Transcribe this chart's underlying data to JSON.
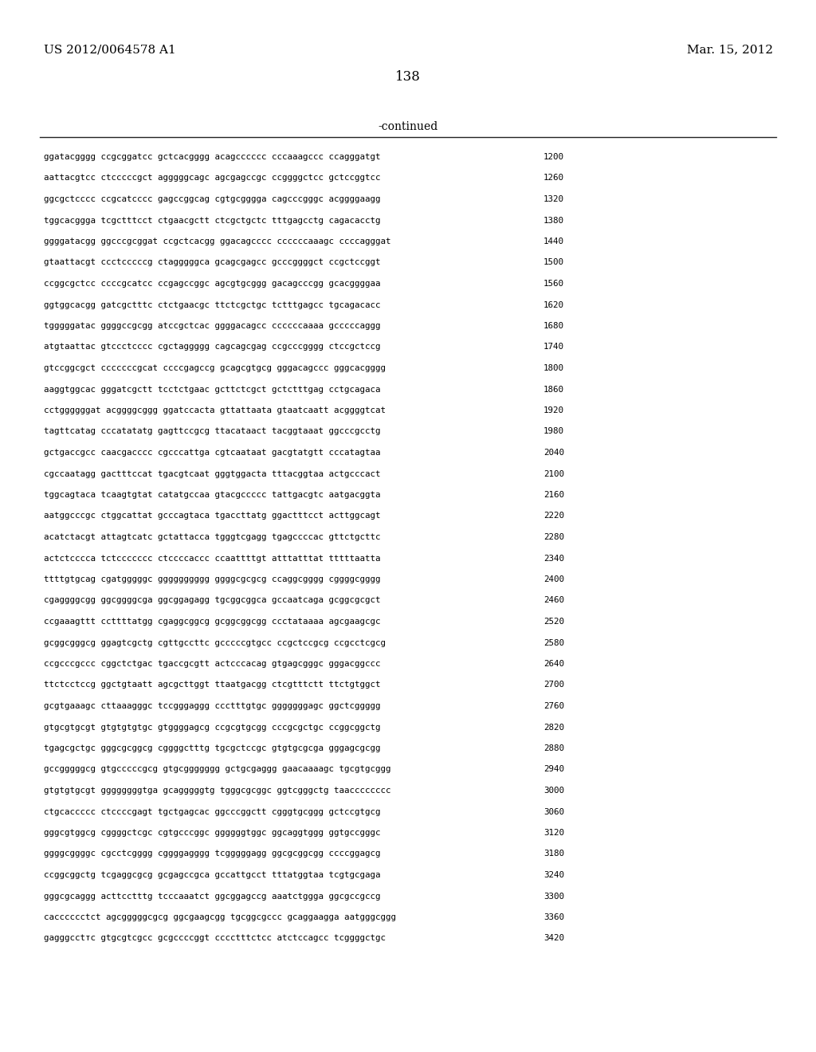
{
  "header_left": "US 2012/0064578 A1",
  "header_right": "Mar. 15, 2012",
  "page_number": "138",
  "continued_label": "-continued",
  "background_color": "#ffffff",
  "text_color": "#000000",
  "sequence_lines": [
    {
      "seq": "ggatacgggg ccgcggatcc gctcacgggg acagcccccc cccaaagccc ccagggatgt",
      "num": "1200"
    },
    {
      "seq": "aattacgtcc ctcccccgct agggggcagc agcgagccgc ccggggctcc gctccggtcc",
      "num": "1260"
    },
    {
      "seq": "ggcgctcccc ccgcatcccc gagccggcag cgtgcgggga cagcccgggc acggggaagg",
      "num": "1320"
    },
    {
      "seq": "tggcacggga tcgctttcct ctgaacgctt ctcgctgctc tttgagcctg cagacacctg",
      "num": "1380"
    },
    {
      "seq": "ggggatacgg ggcccgcggat ccgctcacgg ggacagcccc ccccccaaagc ccccagggat",
      "num": "1440"
    },
    {
      "seq": "gtaattacgt ccctcccccg ctagggggca gcagcgagcc gcccggggct ccgctccggt",
      "num": "1500"
    },
    {
      "seq": "ccggcgctcc ccccgcatcc ccgagccggc agcgtgcggg gacagcccgg gcacggggaa",
      "num": "1560"
    },
    {
      "seq": "ggtggcacgg gatcgctttc ctctgaacgc ttctcgctgc tctttgagcc tgcagacacc",
      "num": "1620"
    },
    {
      "seq": "tgggggatac ggggccgcgg atccgctcac ggggacagcc ccccccaaaa gcccccaggg",
      "num": "1680"
    },
    {
      "seq": "atgtaattac gtccctcccc cgctaggggg cagcagcgag ccgcccgggg ctccgctccg",
      "num": "1740"
    },
    {
      "seq": "gtccggcgct cccccccgcat ccccgagccg gcagcgtgcg gggacagccc gggcacgggg",
      "num": "1800"
    },
    {
      "seq": "aaggtggcac gggatcgctt tcctctgaac gcttctcgct gctctttgag cctgcagaca",
      "num": "1860"
    },
    {
      "seq": "cctggggggat acggggcggg ggatccacta gttattaata gtaatcaatt acggggtcat",
      "num": "1920"
    },
    {
      "seq": "tagttcatag cccatatatg gagttccgcg ttacataact tacggtaaat ggcccgcctg",
      "num": "1980"
    },
    {
      "seq": "gctgaccgcc caacgacccc cgcccattga cgtcaataat gacgtatgtt cccatagtaa",
      "num": "2040"
    },
    {
      "seq": "cgccaatagg gactttccat tgacgtcaat gggtggacta tttacggtaa actgcccact",
      "num": "2100"
    },
    {
      "seq": "tggcagtaca tcaagtgtat catatgccaa gtacgccccc tattgacgtc aatgacggta",
      "num": "2160"
    },
    {
      "seq": "aatggcccgc ctggcattat gcccagtaca tgaccttatg ggactttcct acttggcagt",
      "num": "2220"
    },
    {
      "seq": "acatctacgt attagtcatc gctattacca tgggtcgagg tgagccccac gttctgcttc",
      "num": "2280"
    },
    {
      "seq": "actctcccca tctccccccc ctccccaccc ccaattttgt atttatttat tttttaatta",
      "num": "2340"
    },
    {
      "seq": "ttttgtgcag cgatgggggc gggggggggg ggggcgcgcg ccaggcgggg cggggcgggg",
      "num": "2400"
    },
    {
      "seq": "cgaggggcgg ggcggggcga ggcggagagg tgcggcggca gccaatcaga gcggcgcgct",
      "num": "2460"
    },
    {
      "seq": "ccgaaagttt ccttttatgg cgaggcggcg gcggcggcgg ccctataaaa agcgaagcgc",
      "num": "2520"
    },
    {
      "seq": "gcggcgggcg ggagtcgctg cgttgccttc gcccccgtgcc ccgctccgcg ccgcctcgcg",
      "num": "2580"
    },
    {
      "seq": "ccgcccgccc cggctctgac tgaccgcgtt actcccacag gtgagcgggc gggacggccc",
      "num": "2640"
    },
    {
      "seq": "ttctcctccg ggctgtaatt agcgcttggt ttaatgacgg ctcgtttctt ttctgtggct",
      "num": "2700"
    },
    {
      "seq": "gcgtgaaagc cttaaagggc tccgggaggg ccctttgtgc gggggggagc ggctcggggg",
      "num": "2760"
    },
    {
      "seq": "gtgcgtgcgt gtgtgtgtgc gtggggagcg ccgcgtgcgg cccgcgctgc ccggcggctg",
      "num": "2820"
    },
    {
      "seq": "tgagcgctgc gggcgcggcg cggggctttg tgcgctccgc gtgtgcgcga gggagcgcgg",
      "num": "2880"
    },
    {
      "seq": "gccgggggcg gtgcccccgcg gtgcggggggg gctgcgaggg gaacaaaagc tgcgtgcggg",
      "num": "2940"
    },
    {
      "seq": "gtgtgtgcgt ggggggggtga gcagggggtg tgggcgcggc ggtcgggctg taacccccccc",
      "num": "3000"
    },
    {
      "seq": "ctgcaccccc ctccccgagt tgctgagcac ggcccggctt cgggtgcggg gctccgtgcg",
      "num": "3060"
    },
    {
      "seq": "gggcgtggcg cggggctcgc cgtgcccggc ggggggtggc ggcaggtggg ggtgccgggc",
      "num": "3120"
    },
    {
      "seq": "ggggcggggc cgcctcgggg cggggagggg tcgggggagg ggcgcggcgg ccccggagcg",
      "num": "3180"
    },
    {
      "seq": "ccggcggctg tcgaggcgcg gcgagccgca gccattgcct tttatggtaa tcgtgcgaga",
      "num": "3240"
    },
    {
      "seq": "gggcgcaggg acttcctttg tcccaaatct ggcggagccg aaatctggga ggcgccgccg",
      "num": "3300"
    },
    {
      "seq": "cacccccctct agcgggggcgcg ggcgaagcgg tgcggcgccc gcaggaagga aatgggcggg",
      "num": "3360"
    },
    {
      "seq": "gagggcctтc gtgcgtcgcc gcgccccggt cccctttctcc atctccagcc tcggggctgc",
      "num": "3420"
    }
  ]
}
